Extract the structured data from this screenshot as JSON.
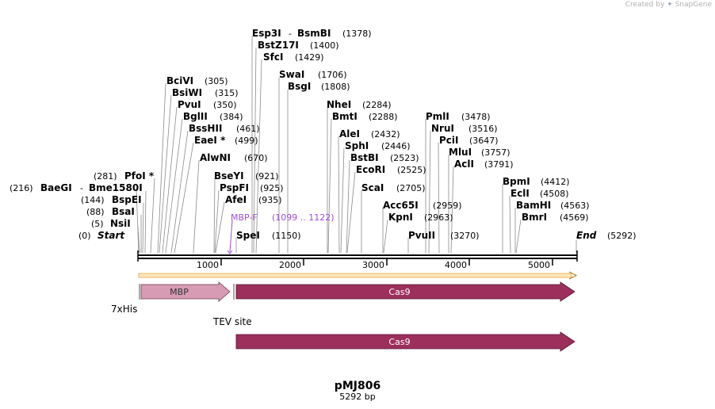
{
  "branding": {
    "prefix": "Created by",
    "name": "SnapGene"
  },
  "plasmid": {
    "name": "pMJ806",
    "length_label": "5292 bp",
    "length": 5292
  },
  "markers": {
    "start": "Start",
    "end": "End"
  },
  "ticks": [
    "1000",
    "2000",
    "3000",
    "4000",
    "5000"
  ],
  "sites": [
    {
      "name": "BaeGI",
      "pos": "(216)"
    },
    {
      "name": "Bme1580I",
      "pos": "(216)"
    },
    {
      "name": "PfoI *",
      "pos": "(281)"
    },
    {
      "name": "BspEI",
      "pos": "(144)"
    },
    {
      "name": "BsaI",
      "pos": "(88)"
    },
    {
      "name": "NsiI",
      "pos": "(5)"
    },
    {
      "name": "BciVI",
      "pos": "(305)"
    },
    {
      "name": "BsiWI",
      "pos": "(315)"
    },
    {
      "name": "PvuI",
      "pos": "(350)"
    },
    {
      "name": "BglII",
      "pos": "(384)"
    },
    {
      "name": "BssHII",
      "pos": "(461)"
    },
    {
      "name": "EaeI *",
      "pos": "(499)"
    },
    {
      "name": "AlwNI",
      "pos": "(670)"
    },
    {
      "name": "BseYI",
      "pos": "(921)"
    },
    {
      "name": "PspFI",
      "pos": "(925)"
    },
    {
      "name": "AfeI",
      "pos": "(935)"
    },
    {
      "name": "SpeI",
      "pos": "(1150)"
    },
    {
      "name": "Esp3I",
      "pos": "(1378)"
    },
    {
      "name": "BsmBI",
      "pos": "(1378)"
    },
    {
      "name": "BstZ17I",
      "pos": "(1400)"
    },
    {
      "name": "SfcI",
      "pos": "(1429)"
    },
    {
      "name": "SwaI",
      "pos": "(1706)"
    },
    {
      "name": "BsgI",
      "pos": "(1808)"
    },
    {
      "name": "NheI",
      "pos": "(2284)"
    },
    {
      "name": "BmtI",
      "pos": "(2288)"
    },
    {
      "name": "AleI",
      "pos": "(2432)"
    },
    {
      "name": "SphI",
      "pos": "(2446)"
    },
    {
      "name": "BstBI",
      "pos": "(2523)"
    },
    {
      "name": "EcoRI",
      "pos": "(2525)"
    },
    {
      "name": "ScaI",
      "pos": "(2705)"
    },
    {
      "name": "Acc65I",
      "pos": "(2959)"
    },
    {
      "name": "KpnI",
      "pos": "(2963)"
    },
    {
      "name": "PvuII",
      "pos": "(3270)"
    },
    {
      "name": "PmlI",
      "pos": "(3478)"
    },
    {
      "name": "NruI",
      "pos": "(3516)"
    },
    {
      "name": "PciI",
      "pos": "(3647)"
    },
    {
      "name": "MluI",
      "pos": "(3757)"
    },
    {
      "name": "AclI",
      "pos": "(3791)"
    },
    {
      "name": "BpmI",
      "pos": "(4412)"
    },
    {
      "name": "EclI",
      "pos": "(4508)"
    },
    {
      "name": "BamHI",
      "pos": "(4563)"
    },
    {
      "name": "BmrI",
      "pos": "(4569)"
    },
    {
      "name": "End",
      "pos": "(5292)"
    },
    {
      "name": "Start",
      "pos": "(0)"
    }
  ],
  "primer": {
    "name": "MBP-F",
    "range": "(1099 .. 1122)"
  },
  "features": {
    "mbp": "MBP",
    "cas9": "Cas9",
    "cas9_orf": "Cas9",
    "his": "7xHis",
    "tev": "TEV site"
  },
  "colors": {
    "mbp_fill": "#d79bb4",
    "cas9_fill": "#9c2f5c",
    "orf_line": "#e8a93a",
    "primer": "#a04cd8"
  }
}
